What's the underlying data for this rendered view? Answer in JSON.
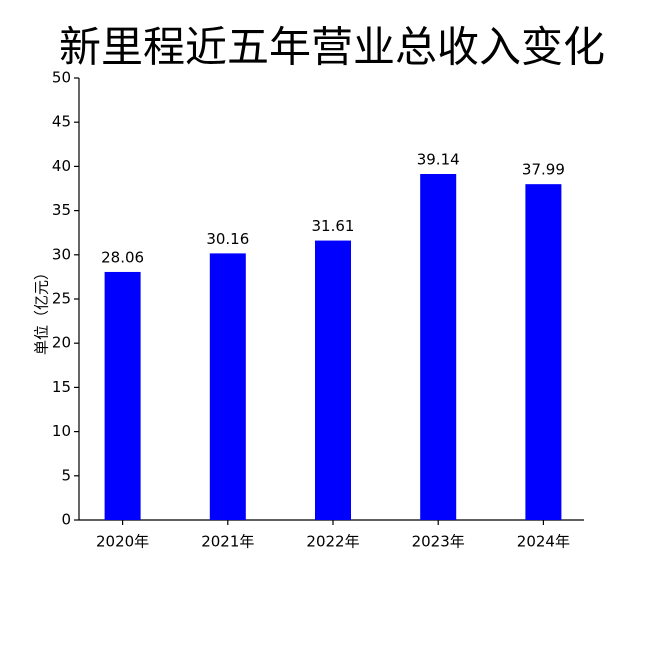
{
  "chart_data": {
    "type": "bar",
    "title": "新里程近五年营业总收入变化",
    "y_label": "单位（亿元）",
    "categories": [
      "2020年",
      "2021年",
      "2022年",
      "2023年",
      "2024年"
    ],
    "values": [
      28.06,
      30.16,
      31.61,
      39.14,
      37.99
    ],
    "color": "#0000ff",
    "ylim": [
      0,
      50
    ],
    "yticks": [
      0,
      5,
      10,
      15,
      20,
      25,
      30,
      35,
      40,
      45,
      50
    ],
    "grid": false
  }
}
